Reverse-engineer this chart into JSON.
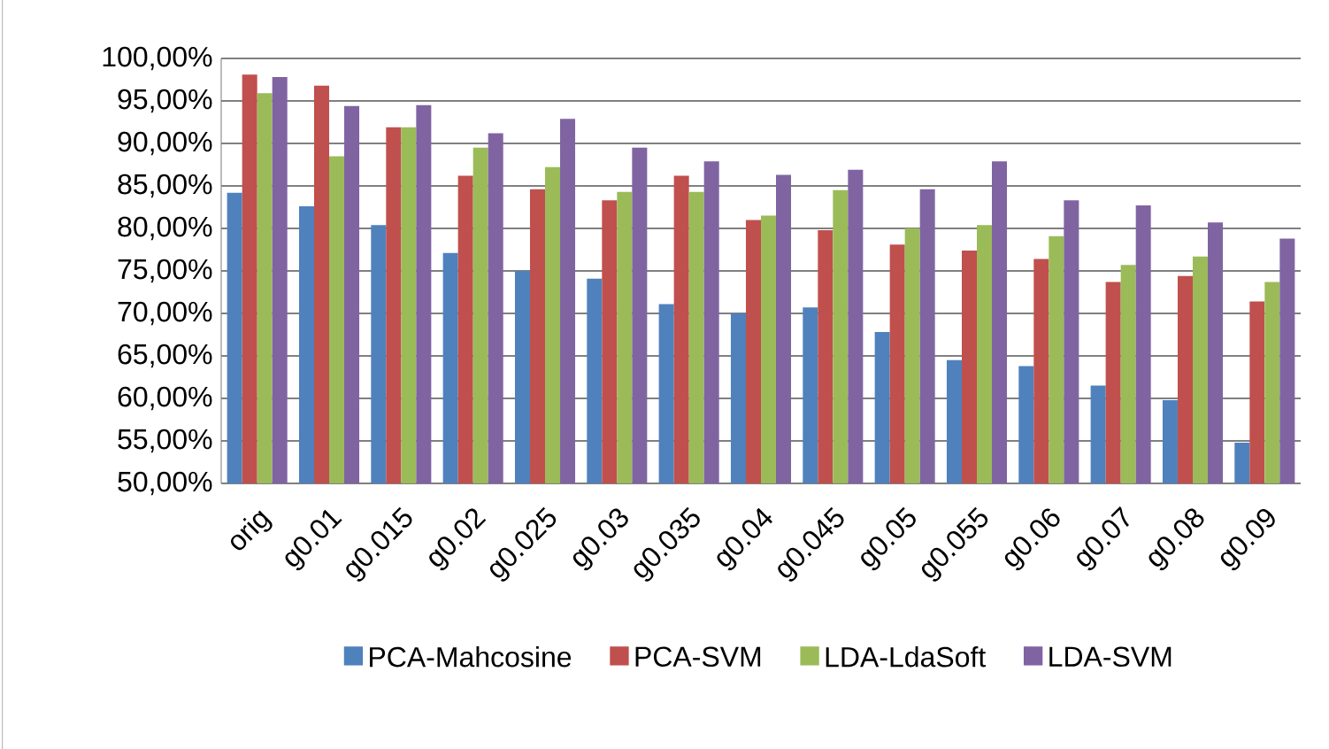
{
  "chart_data": {
    "type": "bar",
    "categories": [
      "orig",
      "g0.01",
      "g0.015",
      "g0.02",
      "g0.025",
      "g0.03",
      "g0.035",
      "g0.04",
      "g0.045",
      "g0.05",
      "g0.055",
      "g0.06",
      "g0.07",
      "g0.08",
      "g0.09"
    ],
    "series": [
      {
        "name": "PCA-Mahcosine",
        "color": "#4f81bd",
        "values": [
          84.2,
          82.6,
          80.4,
          77.1,
          75.0,
          74.1,
          71.1,
          70.0,
          70.7,
          67.8,
          64.5,
          63.8,
          61.5,
          59.8,
          54.8
        ]
      },
      {
        "name": "PCA-SVM",
        "color": "#c0504d",
        "values": [
          98.1,
          96.8,
          91.9,
          86.2,
          84.6,
          83.3,
          86.2,
          81.0,
          79.8,
          78.1,
          77.4,
          76.4,
          73.7,
          74.4,
          71.4
        ]
      },
      {
        "name": "LDA-LdaSoft",
        "color": "#9bbb59",
        "values": [
          95.9,
          88.5,
          91.9,
          89.5,
          87.2,
          84.3,
          84.3,
          81.5,
          84.5,
          80.0,
          80.4,
          79.1,
          75.7,
          76.7,
          73.7
        ]
      },
      {
        "name": "LDA-SVM",
        "color": "#8064a2",
        "values": [
          97.8,
          94.4,
          94.5,
          91.2,
          92.9,
          89.5,
          87.9,
          86.3,
          86.9,
          84.6,
          87.9,
          83.3,
          82.7,
          80.7,
          78.8
        ]
      }
    ],
    "ylim": [
      50,
      100
    ],
    "yticks": [
      {
        "value": 50,
        "label": "50,00%"
      },
      {
        "value": 55,
        "label": "55,00%"
      },
      {
        "value": 60,
        "label": "60,00%"
      },
      {
        "value": 65,
        "label": "65,00%"
      },
      {
        "value": 70,
        "label": "70,00%"
      },
      {
        "value": 75,
        "label": "75,00%"
      },
      {
        "value": 80,
        "label": "80,00%"
      },
      {
        "value": 85,
        "label": "85,00%"
      },
      {
        "value": 90,
        "label": "90,00%"
      },
      {
        "value": 95,
        "label": "95,00%"
      },
      {
        "value": 100,
        "label": "100,00%"
      }
    ],
    "grid": "y",
    "legend": "bottom"
  }
}
